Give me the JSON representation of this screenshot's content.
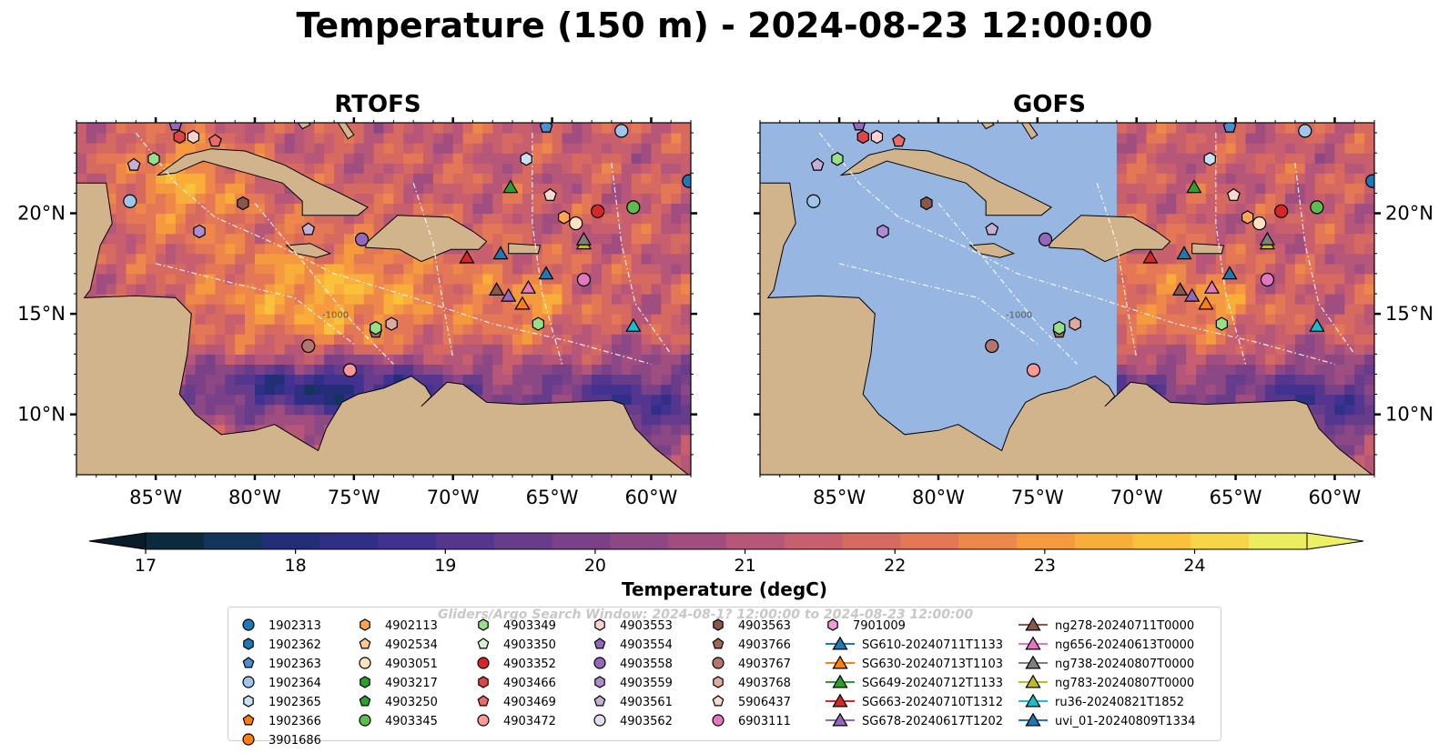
{
  "figure": {
    "title": "Temperature (150 m) - 2024-08-23 12:00:00"
  },
  "panels": [
    {
      "title": "RTOFS",
      "model_coverage": "full"
    },
    {
      "title": "GOFS",
      "model_coverage": "east of 71°W"
    }
  ],
  "map_extent": {
    "lon": [
      -89,
      -58
    ],
    "lat": [
      7,
      24.5
    ]
  },
  "axes": {
    "lon_ticks": [
      {
        "value": -85,
        "label": "85°W"
      },
      {
        "value": -80,
        "label": "80°W"
      },
      {
        "value": -75,
        "label": "75°W"
      },
      {
        "value": -70,
        "label": "70°W"
      },
      {
        "value": -65,
        "label": "65°W"
      },
      {
        "value": -60,
        "label": "60°W"
      }
    ],
    "lat_ticks": [
      {
        "value": 20,
        "label": "20°N"
      },
      {
        "value": 15,
        "label": "15°N"
      },
      {
        "value": 10,
        "label": "10°N"
      }
    ]
  },
  "colors": {
    "land": "#d2b48c",
    "ocean_masked": "#97b6e1",
    "colormap": [
      "#0b2a3c",
      "#13355c",
      "#222f78",
      "#302f86",
      "#413291",
      "#55368f",
      "#673c8b",
      "#7a4188",
      "#8c4885",
      "#a04e80",
      "#b6577a",
      "#c75f6e",
      "#d76a60",
      "#e47756",
      "#ee884a",
      "#f59a3f",
      "#f9ae3a",
      "#fac13d",
      "#f7d549",
      "#ecec60"
    ]
  },
  "colorbar": {
    "label": "Temperature (degC)",
    "min": 17,
    "max": 24.75,
    "ticks": [
      {
        "value": 17,
        "label": "17"
      },
      {
        "value": 18,
        "label": "18"
      },
      {
        "value": 19,
        "label": "19"
      },
      {
        "value": 20,
        "label": "20"
      },
      {
        "value": 21,
        "label": "21"
      },
      {
        "value": 22,
        "label": "22"
      },
      {
        "value": 23,
        "label": "23"
      },
      {
        "value": 24,
        "label": "24"
      }
    ]
  },
  "bathymetry_contour_label": "-1000",
  "legend": {
    "watermark": "Gliders/Argo Search Window: 2024-08-1? 12:00:00 to 2024-08-23 12:00:00",
    "columns": [
      [
        {
          "label": "1902313",
          "marker": "circle",
          "color": "#1f77b4"
        },
        {
          "label": "1902362",
          "marker": "hexagon",
          "color": "#1f77b4"
        },
        {
          "label": "1902363",
          "marker": "pentagon",
          "color": "#4a90d0"
        },
        {
          "label": "1902364",
          "marker": "circle",
          "color": "#9dc6ea"
        },
        {
          "label": "1902365",
          "marker": "hexagon",
          "color": "#c6e0f5"
        },
        {
          "label": "1902366",
          "marker": "pentagon",
          "color": "#ff7f0e"
        },
        {
          "label": "3901686",
          "marker": "circle",
          "color": "#ff7f0e"
        }
      ],
      [
        {
          "label": "4902113",
          "marker": "hexagon",
          "color": "#ffa552"
        },
        {
          "label": "4902534",
          "marker": "pentagon",
          "color": "#ffc990"
        },
        {
          "label": "4903051",
          "marker": "circle",
          "color": "#ffe2c2"
        },
        {
          "label": "4903217",
          "marker": "hexagon",
          "color": "#2ca02c"
        },
        {
          "label": "4903250",
          "marker": "pentagon",
          "color": "#2ca02c"
        },
        {
          "label": "4903345",
          "marker": "circle",
          "color": "#5bbd4f"
        }
      ],
      [
        {
          "label": "4903349",
          "marker": "hexagon",
          "color": "#98df8a"
        },
        {
          "label": "4903350",
          "marker": "pentagon",
          "color": "#d4f5cc"
        },
        {
          "label": "4903352",
          "marker": "circle",
          "color": "#d62728"
        },
        {
          "label": "4903466",
          "marker": "hexagon",
          "color": "#e04546"
        },
        {
          "label": "4903469",
          "marker": "pentagon",
          "color": "#ec6a6a"
        },
        {
          "label": "4903472",
          "marker": "circle",
          "color": "#ff9896"
        }
      ],
      [
        {
          "label": "4903553",
          "marker": "hexagon",
          "color": "#ffd0cf"
        },
        {
          "label": "4903554",
          "marker": "pentagon",
          "color": "#9467bd"
        },
        {
          "label": "4903558",
          "marker": "circle",
          "color": "#9467bd"
        },
        {
          "label": "4903559",
          "marker": "hexagon",
          "color": "#b08ad3"
        },
        {
          "label": "4903561",
          "marker": "pentagon",
          "color": "#c5b0d5"
        },
        {
          "label": "4903562",
          "marker": "circle",
          "color": "#e6dcf1"
        }
      ],
      [
        {
          "label": "4903563",
          "marker": "hexagon",
          "color": "#8c564b"
        },
        {
          "label": "4903766",
          "marker": "pentagon",
          "color": "#a0675b"
        },
        {
          "label": "4903767",
          "marker": "circle",
          "color": "#b5776b"
        },
        {
          "label": "4903768",
          "marker": "hexagon",
          "color": "#e0aaa0"
        },
        {
          "label": "5906437",
          "marker": "pentagon",
          "color": "#f7d8d2"
        },
        {
          "label": "6903111",
          "marker": "circle",
          "color": "#e377c2"
        }
      ],
      [
        {
          "label": "7901009",
          "marker": "hexagon",
          "color": "#f49ad8"
        },
        {
          "label": "SG610-20240711T1133",
          "marker": "triangle",
          "color": "#1f77b4",
          "line": true
        },
        {
          "label": "SG630-20240713T1103",
          "marker": "triangle",
          "color": "#ff7f0e",
          "line": true
        },
        {
          "label": "SG649-20240712T1133",
          "marker": "triangle",
          "color": "#2ca02c",
          "line": true
        },
        {
          "label": "SG663-20240710T1312",
          "marker": "triangle",
          "color": "#d62728",
          "line": true
        },
        {
          "label": "SG678-20240617T1202",
          "marker": "triangle",
          "color": "#9467bd",
          "line": true
        }
      ],
      [
        {
          "label": "ng278-20240711T0000",
          "marker": "triangle",
          "color": "#8c564b",
          "line": true
        },
        {
          "label": "ng656-20240613T0000",
          "marker": "triangle",
          "color": "#e377c2",
          "line": true
        },
        {
          "label": "ng738-20240807T0000",
          "marker": "triangle",
          "color": "#7f7f7f",
          "line": true
        },
        {
          "label": "ng783-20240807T0000",
          "marker": "triangle",
          "color": "#bcbd22",
          "line": true
        },
        {
          "label": "ru36-20240821T1852",
          "marker": "triangle",
          "color": "#17becf",
          "line": true
        },
        {
          "label": "uvi_01-20240809T1334",
          "marker": "triangle",
          "color": "#1f77b4",
          "line": true
        }
      ]
    ]
  },
  "markers": [
    {
      "id": "1902364",
      "lon": -86.3,
      "lat": 20.6
    },
    {
      "id": "1902365",
      "lon": -66.3,
      "lat": 22.7
    },
    {
      "id": "1902363",
      "lon": -65.3,
      "lat": 24.3
    },
    {
      "id": "1902364",
      "lon": -61.5,
      "lat": 24.1
    },
    {
      "id": "1902313",
      "lon": -58.1,
      "lat": 21.6
    },
    {
      "id": "4903349",
      "lon": -85.1,
      "lat": 22.7
    },
    {
      "id": "4903469",
      "lon": -82.0,
      "lat": 23.6
    },
    {
      "id": "4903466",
      "lon": -83.8,
      "lat": 23.8
    },
    {
      "id": "4903553",
      "lon": -83.1,
      "lat": 23.8
    },
    {
      "id": "4903554",
      "lon": -84.0,
      "lat": 24.4
    },
    {
      "id": "4903561",
      "lon": -86.1,
      "lat": 22.4
    },
    {
      "id": "4903563",
      "lon": -80.6,
      "lat": 20.5
    },
    {
      "id": "4903559",
      "lon": -82.8,
      "lat": 19.1
    },
    {
      "id": "4903561",
      "lon": -77.3,
      "lat": 19.2
    },
    {
      "id": "4903558",
      "lon": -74.6,
      "lat": 18.7
    },
    {
      "id": "5906437",
      "lon": -65.1,
      "lat": 20.9
    },
    {
      "id": "4903352",
      "lon": -62.7,
      "lat": 20.1
    },
    {
      "id": "4903345",
      "lon": -60.9,
      "lat": 20.3
    },
    {
      "id": "4902113",
      "lon": -64.4,
      "lat": 19.8
    },
    {
      "id": "4903051",
      "lon": -63.8,
      "lat": 19.5
    },
    {
      "id": "6903111",
      "lon": -63.4,
      "lat": 16.7
    },
    {
      "id": "4903349",
      "lon": -65.7,
      "lat": 14.5
    },
    {
      "id": "4903767",
      "lon": -77.3,
      "lat": 13.4
    },
    {
      "id": "4903472",
      "lon": -75.2,
      "lat": 12.2
    },
    {
      "id": "4903766",
      "lon": -73.9,
      "lat": 14.1
    },
    {
      "id": "4903349",
      "lon": -73.9,
      "lat": 14.3
    },
    {
      "id": "4903768",
      "lon": -73.1,
      "lat": 14.5
    },
    {
      "id": "SG649-20240712T1133",
      "lon": -67.1,
      "lat": 21.3
    },
    {
      "id": "SG663-20240710T1312",
      "lon": -69.3,
      "lat": 17.8
    },
    {
      "id": "SG610-20240711T1133",
      "lon": -67.6,
      "lat": 18.0
    },
    {
      "id": "ng783-20240807T0000",
      "lon": -63.4,
      "lat": 18.5
    },
    {
      "id": "ng738-20240807T0000",
      "lon": -63.4,
      "lat": 18.7
    },
    {
      "id": "uvi_01-20240809T1334",
      "lon": -65.3,
      "lat": 17.0
    },
    {
      "id": "ng278-20240711T0000",
      "lon": -67.8,
      "lat": 16.2
    },
    {
      "id": "SG678-20240617T1202",
      "lon": -67.2,
      "lat": 15.9
    },
    {
      "id": "ng656-20240613T0000",
      "lon": -66.2,
      "lat": 16.3
    },
    {
      "id": "SG630-20240713T1103",
      "lon": -66.5,
      "lat": 15.5
    },
    {
      "id": "ru36-20240821T1852",
      "lon": -60.9,
      "lat": 14.4
    }
  ]
}
